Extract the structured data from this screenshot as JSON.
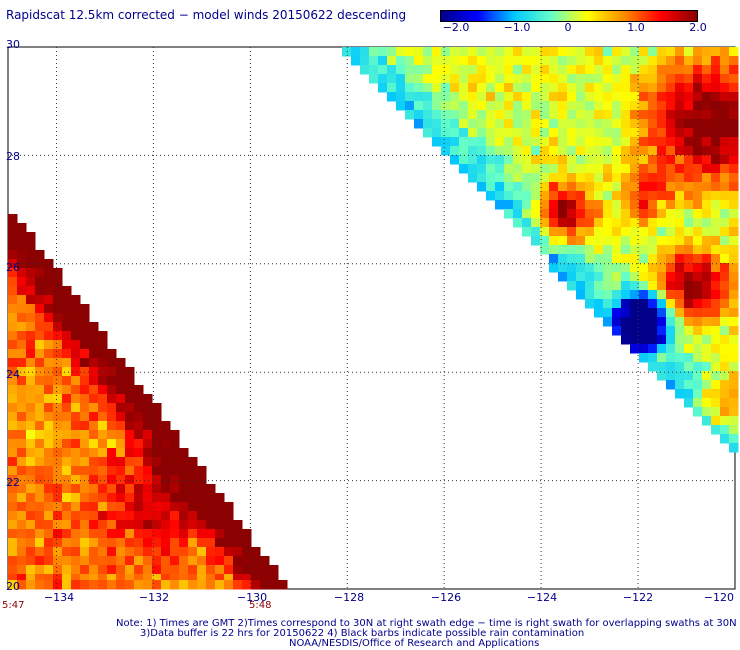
{
  "title": "Rapidscat 12.5km corrected − model winds 20150622 descending",
  "colorbar": {
    "labels": [
      "−2.0",
      "−1.0",
      "0",
      "1.0",
      "2.0"
    ],
    "min": -2.0,
    "max": 2.0,
    "colors": [
      "#00008b",
      "#0000ff",
      "#00c8ff",
      "#64ffc8",
      "#ffff00",
      "#ff8c00",
      "#ff0000",
      "#8b0000"
    ]
  },
  "axes": {
    "lon_labels": [
      "−134",
      "−132",
      "−130",
      "−128",
      "−126",
      "−124",
      "−122",
      "−120"
    ],
    "lat_labels": [
      "30",
      "28",
      "26",
      "24",
      "22",
      "20"
    ],
    "lon_range": [
      -135,
      -120
    ],
    "lat_range": [
      20,
      30
    ],
    "grid": "dotted"
  },
  "swath_times": [
    {
      "label": "5:47",
      "lon": -135
    },
    {
      "label": "5:48",
      "lon": -130.2
    }
  ],
  "notes": [
    "Note: 1) Times are GMT 2)Times correspond to 30N at right swath edge − time is right swath for overlapping swaths at 30N",
    "3)Data buffer is 22 hrs for 20150622 4) Black barbs indicate possible rain contamination",
    "NOAA/NESDIS/Office of Research and Applications"
  ]
}
